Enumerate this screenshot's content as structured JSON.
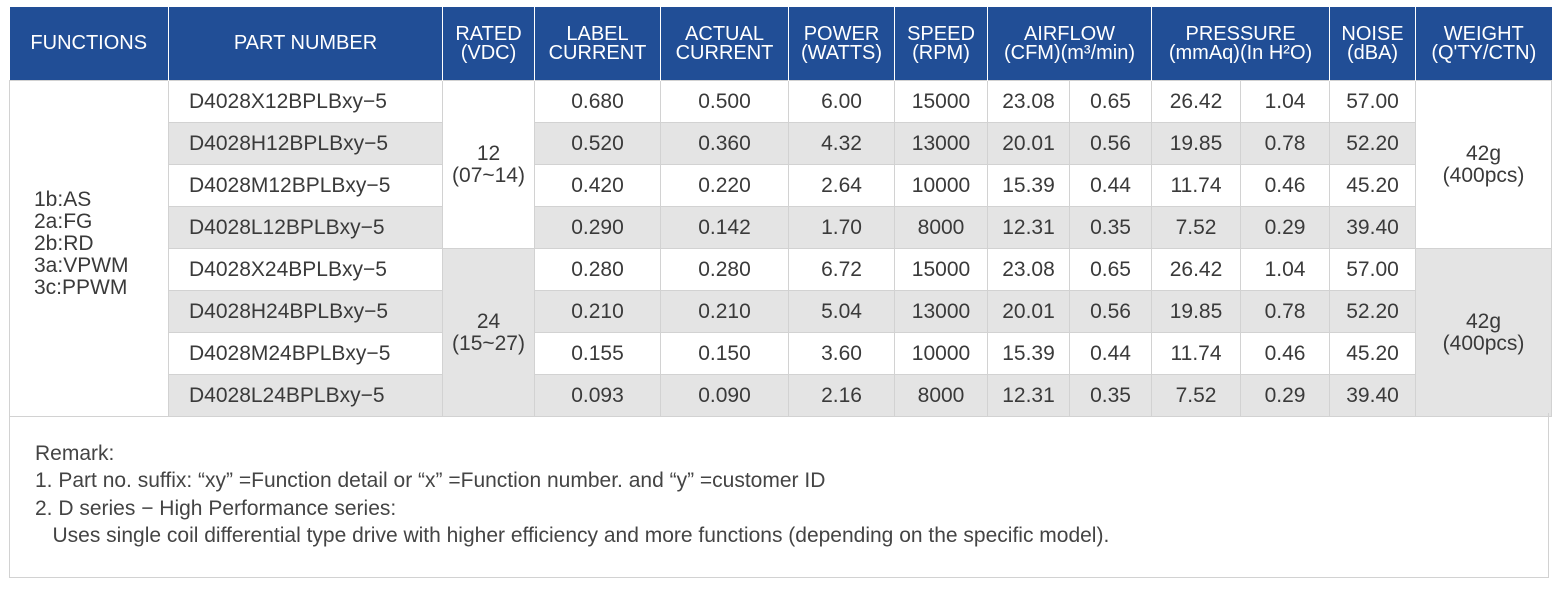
{
  "headers": {
    "functions": [
      "FUNCTIONS"
    ],
    "part_number": [
      "PART NUMBER"
    ],
    "rated": [
      "RATED",
      "(VDC)"
    ],
    "label_current": [
      "LABEL",
      "CURRENT"
    ],
    "actual_current": [
      "ACTUAL",
      "CURRENT"
    ],
    "power": [
      "POWER",
      "(WATTS)"
    ],
    "speed": [
      "SPEED",
      "(RPM)"
    ],
    "airflow": [
      "AIRFLOW",
      "(CFM)(m³/min)"
    ],
    "pressure": [
      "PRESSURE",
      "(mmAq)(In H²O)"
    ],
    "noise": [
      "NOISE",
      "(dBA)"
    ],
    "weight": [
      "WEIGHT",
      "(Q'TY/CTN)"
    ]
  },
  "functions": [
    "1b:AS",
    "2a:FG",
    "2b:RD",
    "3a:VPWM",
    "3c:PPWM"
  ],
  "groups": [
    {
      "rated": [
        "12",
        "(07~14)"
      ],
      "weight": [
        "42g",
        "(400pcs)"
      ]
    },
    {
      "rated": [
        "24",
        "(15~27)"
      ],
      "weight": [
        "42g",
        "(400pcs)"
      ]
    }
  ],
  "rows": [
    [
      "D4028X12BPLBxy−5",
      "0.680",
      "0.500",
      "6.00",
      "15000",
      "23.08",
      "0.65",
      "26.42",
      "1.04",
      "57.00"
    ],
    [
      "D4028H12BPLBxy−5",
      "0.520",
      "0.360",
      "4.32",
      "13000",
      "20.01",
      "0.56",
      "19.85",
      "0.78",
      "52.20"
    ],
    [
      "D4028M12BPLBxy−5",
      "0.420",
      "0.220",
      "2.64",
      "10000",
      "15.39",
      "0.44",
      "11.74",
      "0.46",
      "45.20"
    ],
    [
      "D4028L12BPLBxy−5",
      "0.290",
      "0.142",
      "1.70",
      "8000",
      "12.31",
      "0.35",
      "7.52",
      "0.29",
      "39.40"
    ],
    [
      "D4028X24BPLBxy−5",
      "0.280",
      "0.280",
      "6.72",
      "15000",
      "23.08",
      "0.65",
      "26.42",
      "1.04",
      "57.00"
    ],
    [
      "D4028H24BPLBxy−5",
      "0.210",
      "0.210",
      "5.04",
      "13000",
      "20.01",
      "0.56",
      "19.85",
      "0.78",
      "52.20"
    ],
    [
      "D4028M24BPLBxy−5",
      "0.155",
      "0.150",
      "3.60",
      "10000",
      "15.39",
      "0.44",
      "11.74",
      "0.46",
      "45.20"
    ],
    [
      "D4028L24BPLBxy−5",
      "0.093",
      "0.090",
      "2.16",
      "8000",
      "12.31",
      "0.35",
      "7.52",
      "0.29",
      "39.40"
    ]
  ],
  "remarks": [
    "Remark:",
    "1. Part no. suffix: “xy” =Function detail or “x” =Function number. and “y” =customer ID",
    "2. D series − High Performance series:",
    "   Uses single coil differential type drive with higher efficiency and more functions (depending on the specific model)."
  ],
  "colors": {
    "header_bg": "#214e96",
    "row_grey": "#e4e4e4",
    "border": "#d2d2d2"
  }
}
